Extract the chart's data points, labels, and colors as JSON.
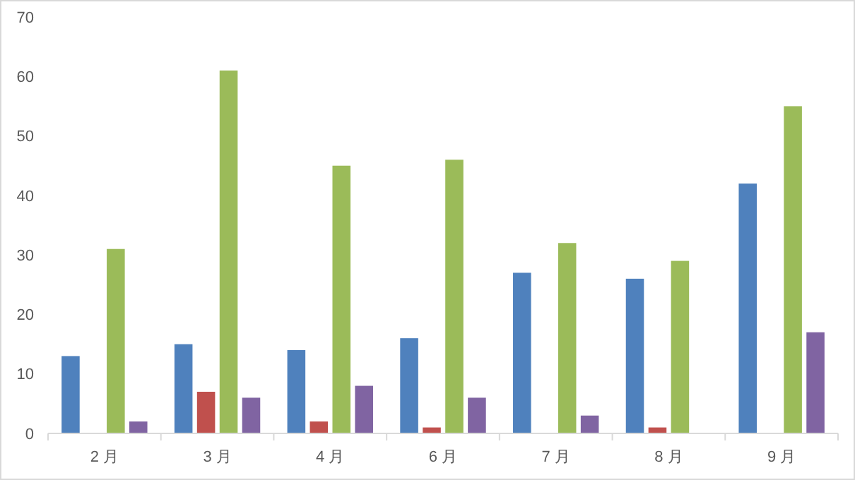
{
  "chart_data": {
    "type": "bar",
    "categories": [
      "2 月",
      "3 月",
      "4 月",
      "6 月",
      "7 月",
      "8 月",
      "9 月"
    ],
    "series": [
      {
        "color": "#4f81bd",
        "values": [
          13,
          15,
          14,
          16,
          27,
          26,
          42
        ]
      },
      {
        "color": "#c0504d",
        "values": [
          0,
          7,
          2,
          1,
          0,
          1,
          0
        ]
      },
      {
        "color": "#9bbb59",
        "values": [
          31,
          61,
          45,
          46,
          32,
          29,
          55
        ]
      },
      {
        "color": "#8064a2",
        "values": [
          2,
          6,
          8,
          6,
          3,
          0,
          17
        ]
      }
    ],
    "ylim": [
      0,
      70
    ],
    "yticks": [
      0,
      10,
      20,
      30,
      40,
      50,
      60,
      70
    ]
  }
}
